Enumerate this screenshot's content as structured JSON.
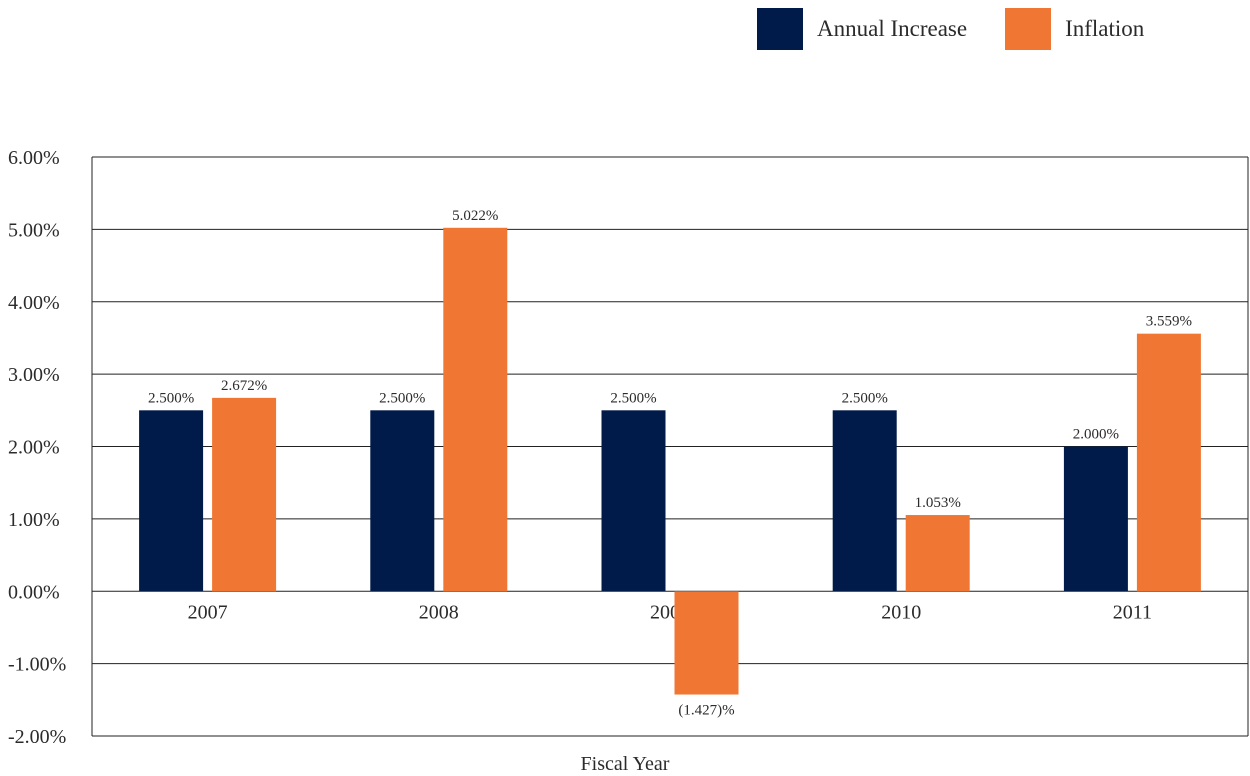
{
  "legend": [
    {
      "label": "Annual Increase",
      "color": "#001a4a"
    },
    {
      "label": "Inflation",
      "color": "#f07733"
    }
  ],
  "chart_data": {
    "type": "bar",
    "categories": [
      "2007",
      "2008",
      "2009",
      "2010",
      "2011"
    ],
    "series": [
      {
        "name": "Annual Increase",
        "values": [
          2.5,
          2.5,
          2.5,
          2.5,
          2.0
        ],
        "labels": [
          "2.500%",
          "2.500%",
          "2.500%",
          "2.500%",
          "2.000%"
        ],
        "color": "#001a4a"
      },
      {
        "name": "Inflation",
        "values": [
          2.672,
          5.022,
          -1.427,
          1.053,
          3.559
        ],
        "labels": [
          "2.672%",
          "5.022%",
          "(1.427)%",
          "1.053%",
          "3.559%"
        ],
        "color": "#f07733"
      }
    ],
    "yticks": [
      "6.00%",
      "5.00%",
      "4.00%",
      "3.00%",
      "2.00%",
      "1.00%",
      "0.00%",
      "-1.00%",
      "-2.00%"
    ],
    "ylim": [
      -2,
      6
    ],
    "xlabel": "Fiscal Year",
    "grid": true,
    "legend_position": "top-right"
  }
}
